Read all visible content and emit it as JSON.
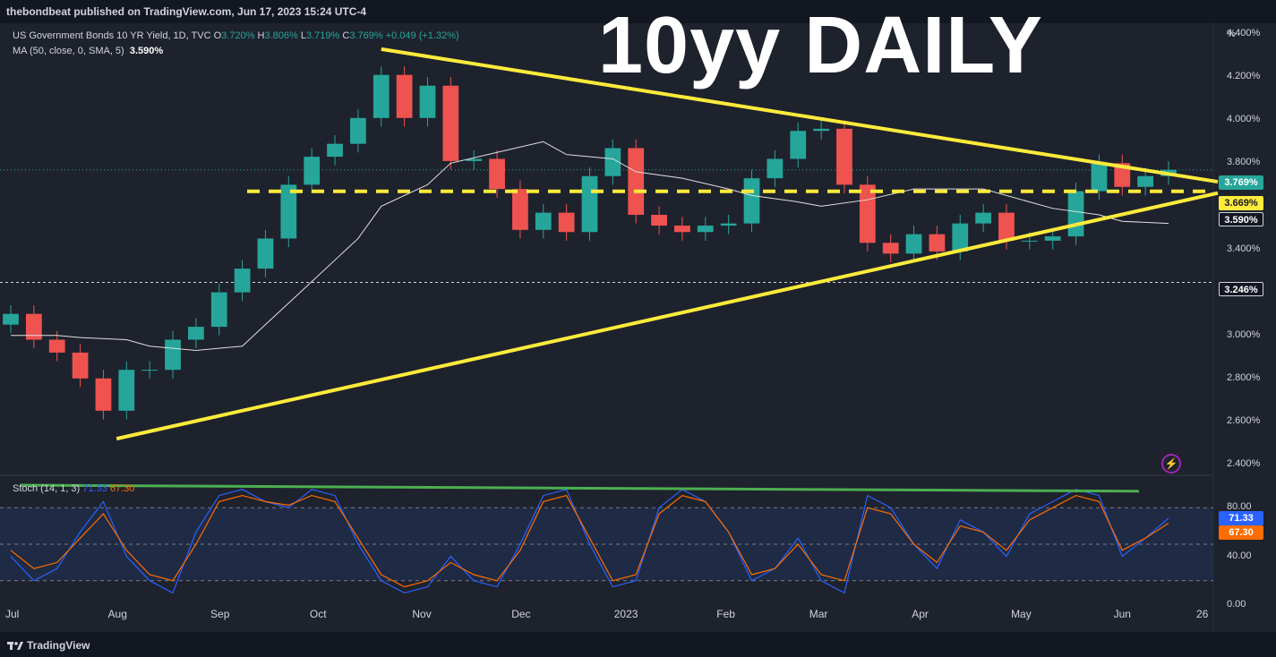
{
  "header": {
    "published": "thebondbeat published on TradingView.com, Jun 17, 2023 15:24 UTC-4"
  },
  "overlay_title": "10yy DAILY",
  "legend": {
    "symbol": "US Government Bonds 10 YR Yield, 1D, TVC",
    "o_label": "O",
    "o_value": "3.720%",
    "h_label": "H",
    "h_value": "3.806%",
    "l_label": "L",
    "l_value": "3.719%",
    "c_label": "C",
    "c_value": "3.769%",
    "change": "+0.049 (+1.32%)",
    "ma_label": "MA (50, close, 0, SMA, 5)",
    "ma_value": "3.590%"
  },
  "stoch_legend": {
    "label": "Stoch (14, 1, 3)",
    "k_value": "71.33",
    "d_value": "67.30"
  },
  "price_axis": {
    "unit": "%",
    "ticks": [
      "4.400%",
      "4.200%",
      "4.000%",
      "3.800%",
      "3.600%",
      "3.400%",
      "3.200%",
      "3.000%",
      "2.800%",
      "2.600%",
      "2.400%"
    ],
    "tags": {
      "last": "3.769%",
      "level": "3.669%",
      "ma": "3.590%",
      "low": "3.246%"
    }
  },
  "stoch_axis": {
    "ticks": [
      "80.00",
      "40.00",
      "0.00"
    ],
    "k_tag": "71.33",
    "d_tag": "67.30"
  },
  "time_axis": [
    "Jul",
    "Aug",
    "Sep",
    "Oct",
    "Nov",
    "Dec",
    "2023",
    "Feb",
    "Mar",
    "Apr",
    "May",
    "Jun",
    "26"
  ],
  "footer": {
    "brand": "TradingView"
  },
  "colors": {
    "up": "#26a69a",
    "down": "#ef5350",
    "trendline": "#ffeb3b",
    "ma": "#e0e0e0",
    "stoch_k": "#2962ff",
    "stoch_d": "#ff6d00",
    "stoch_trend": "#4caf50",
    "background": "#1e222d"
  },
  "chart_data": {
    "type": "candlestick",
    "title": "",
    "ylabel": "%",
    "ylim": [
      2.35,
      4.45
    ],
    "x": [
      "2022-07-01",
      "2022-07-08",
      "2022-07-15",
      "2022-07-22",
      "2022-07-29",
      "2022-08-05",
      "2022-08-12",
      "2022-08-19",
      "2022-08-26",
      "2022-09-02",
      "2022-09-09",
      "2022-09-16",
      "2022-09-23",
      "2022-09-30",
      "2022-10-07",
      "2022-10-14",
      "2022-10-21",
      "2022-10-28",
      "2022-11-04",
      "2022-11-11",
      "2022-11-18",
      "2022-11-25",
      "2022-12-02",
      "2022-12-09",
      "2022-12-16",
      "2022-12-23",
      "2022-12-30",
      "2023-01-06",
      "2023-01-13",
      "2023-01-20",
      "2023-01-27",
      "2023-02-03",
      "2023-02-10",
      "2023-02-17",
      "2023-02-24",
      "2023-03-03",
      "2023-03-10",
      "2023-03-17",
      "2023-03-24",
      "2023-03-31",
      "2023-04-07",
      "2023-04-14",
      "2023-04-21",
      "2023-04-28",
      "2023-05-05",
      "2023-05-12",
      "2023-05-19",
      "2023-05-26",
      "2023-06-02",
      "2023-06-09",
      "2023-06-16"
    ],
    "close": [
      3.1,
      2.98,
      2.92,
      2.8,
      2.65,
      2.84,
      2.84,
      2.98,
      3.04,
      3.2,
      3.31,
      3.45,
      3.7,
      3.83,
      3.89,
      4.01,
      4.21,
      4.01,
      4.16,
      3.81,
      3.82,
      3.68,
      3.49,
      3.57,
      3.48,
      3.74,
      3.87,
      3.56,
      3.51,
      3.48,
      3.51,
      3.52,
      3.73,
      3.82,
      3.95,
      3.96,
      3.7,
      3.43,
      3.38,
      3.47,
      3.39,
      3.52,
      3.57,
      3.44,
      3.44,
      3.46,
      3.67,
      3.8,
      3.69,
      3.74,
      3.769
    ],
    "ma50": [
      3.0,
      3.0,
      2.99,
      2.98,
      2.95,
      2.93,
      2.95,
      3.05,
      3.25,
      3.45,
      3.6,
      3.7,
      3.8,
      3.85,
      3.9,
      3.84,
      3.82,
      3.76,
      3.73,
      3.68,
      3.65,
      3.62,
      3.6,
      3.63,
      3.68,
      3.68,
      3.68,
      3.62,
      3.59,
      3.56,
      3.53,
      3.52
    ],
    "levels": {
      "horizontal_support": 3.669,
      "low_marker": 3.246
    },
    "trendlines": [
      {
        "name": "upper",
        "from": [
          "2022-10-21",
          4.33
        ],
        "to": [
          "2023-06-16",
          3.75
        ]
      },
      {
        "name": "lower",
        "from": [
          "2022-08-02",
          2.52
        ],
        "to": [
          "2023-06-16",
          3.61
        ]
      }
    ],
    "stochastic": {
      "k": [
        40,
        20,
        30,
        60,
        85,
        40,
        20,
        10,
        60,
        90,
        95,
        85,
        80,
        95,
        90,
        50,
        20,
        10,
        15,
        40,
        20,
        15,
        50,
        90,
        95,
        50,
        15,
        20,
        80,
        95,
        85,
        60,
        20,
        30,
        55,
        20,
        10,
        90,
        80,
        50,
        30,
        70,
        60,
        40,
        75,
        85,
        95,
        90,
        40,
        55,
        71.33
      ],
      "d": [
        45,
        30,
        35,
        55,
        75,
        45,
        25,
        20,
        50,
        85,
        90,
        85,
        82,
        90,
        85,
        55,
        25,
        15,
        20,
        35,
        25,
        20,
        45,
        85,
        90,
        55,
        20,
        25,
        75,
        90,
        85,
        60,
        25,
        30,
        50,
        25,
        20,
        80,
        75,
        50,
        35,
        65,
        60,
        45,
        70,
        80,
        90,
        85,
        45,
        55,
        67.3
      ]
    }
  }
}
